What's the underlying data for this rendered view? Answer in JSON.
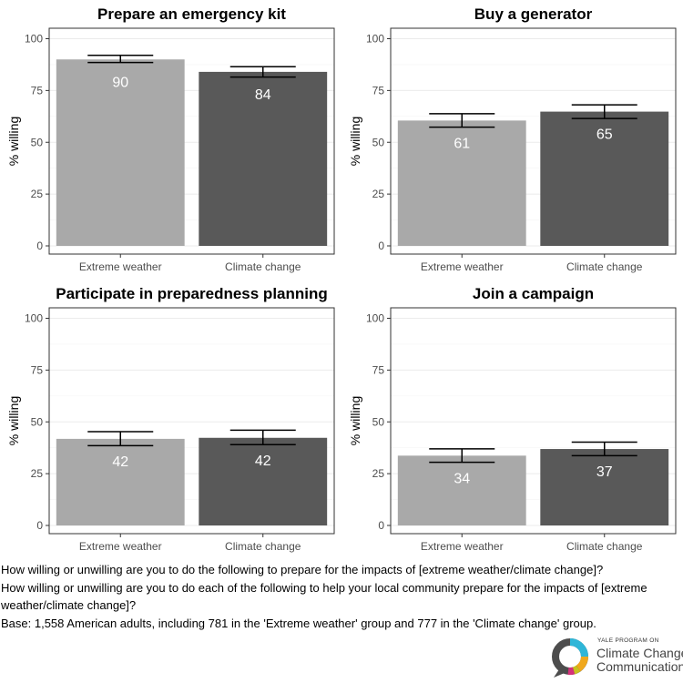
{
  "chart_data": [
    {
      "type": "bar",
      "title": "Prepare an emergency kit",
      "ylabel": "% willing",
      "ylim": [
        0,
        100
      ],
      "yticks": [
        0,
        25,
        50,
        75,
        100
      ],
      "grid": true,
      "categories": [
        "Extreme weather",
        "Climate change"
      ],
      "values": [
        90,
        84
      ],
      "labels": [
        "90",
        "84"
      ],
      "error_low": [
        88.5,
        81.5
      ],
      "error_high": [
        92,
        86.5
      ],
      "colors": [
        "#a9a9a9",
        "#595959"
      ]
    },
    {
      "type": "bar",
      "title": "Buy a generator",
      "ylabel": "% willing",
      "ylim": [
        0,
        100
      ],
      "yticks": [
        0,
        25,
        50,
        75,
        100
      ],
      "grid": true,
      "categories": [
        "Extreme weather",
        "Climate change"
      ],
      "values": [
        60.5,
        64.8
      ],
      "labels": [
        "61",
        "65"
      ],
      "error_low": [
        57.3,
        61.5
      ],
      "error_high": [
        63.8,
        68.1
      ],
      "colors": [
        "#a9a9a9",
        "#595959"
      ]
    },
    {
      "type": "bar",
      "title": "Participate in preparedness planning",
      "ylabel": "% willing",
      "ylim": [
        0,
        100
      ],
      "yticks": [
        0,
        25,
        50,
        75,
        100
      ],
      "grid": true,
      "categories": [
        "Extreme weather",
        "Climate change"
      ],
      "values": [
        41.8,
        42.3
      ],
      "labels": [
        "42",
        "42"
      ],
      "error_low": [
        38.5,
        39
      ],
      "error_high": [
        45.3,
        46
      ],
      "colors": [
        "#a9a9a9",
        "#595959"
      ]
    },
    {
      "type": "bar",
      "title": "Join a campaign",
      "ylabel": "% willing",
      "ylim": [
        0,
        100
      ],
      "yticks": [
        0,
        25,
        50,
        75,
        100
      ],
      "grid": true,
      "categories": [
        "Extreme weather",
        "Climate change"
      ],
      "values": [
        33.7,
        36.9
      ],
      "labels": [
        "34",
        "37"
      ],
      "error_low": [
        30.5,
        33.7
      ],
      "error_high": [
        37,
        40.2
      ],
      "colors": [
        "#a9a9a9",
        "#595959"
      ]
    }
  ],
  "notes": {
    "line1": "How willing or unwilling are you to do the following to prepare for the impacts of [extreme weather/climate change]?",
    "line2": "How willing or unwilling are you to do each of the following to help your local community prepare for the impacts of [extreme weather/climate change]?",
    "line3": "Base: 1,558 American adults, including 781 in the 'Extreme weather' group and 777 in the 'Climate change' group."
  },
  "logo": {
    "small": "YALE PROGRAM ON",
    "line1": "Climate Change",
    "line2": "Communication",
    "ring_colors": [
      "#2fb6d8",
      "#f0a81c",
      "#c8c21f",
      "#d6317a",
      "#4d4d4d"
    ]
  }
}
